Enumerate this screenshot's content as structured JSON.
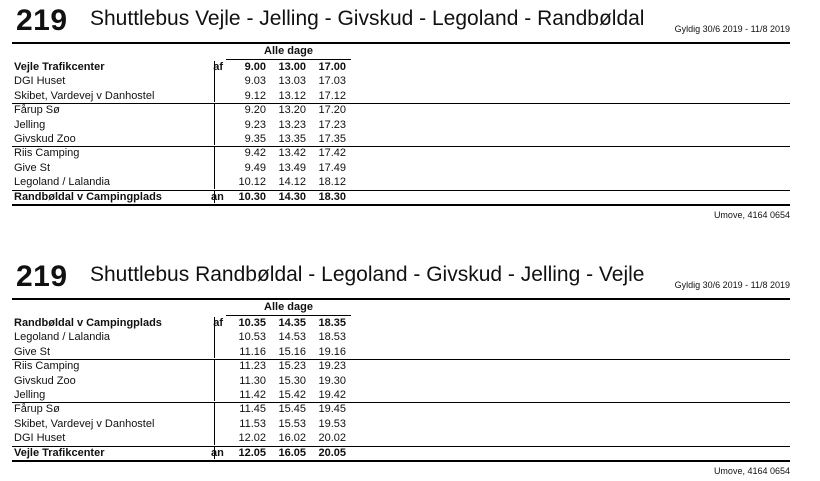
{
  "tables": [
    {
      "route": "219",
      "title": "Shuttlebus Vejle - Jelling - Givskud - Legoland - Randbøldal",
      "valid": "Gyldig 30/6 2019 - 11/8 2019",
      "day_header": "Alle dage",
      "note": "Umove, 4164 0654",
      "rows": [
        {
          "stop": "Vejle Trafikcenter",
          "mark": "af",
          "bold": true,
          "times": [
            "9.00",
            "13.00",
            "17.00"
          ]
        },
        {
          "stop": "DGI Huset",
          "mark": "",
          "bold": false,
          "times": [
            "9.03",
            "13.03",
            "17.03"
          ]
        },
        {
          "stop": "Skibet, Vardevej v Danhostel",
          "mark": "",
          "bold": false,
          "times": [
            "9.12",
            "13.12",
            "17.12"
          ]
        },
        {
          "stop": "Fårup Sø",
          "mark": "",
          "bold": false,
          "times": [
            "9.20",
            "13.20",
            "17.20"
          ]
        },
        {
          "stop": "Jelling",
          "mark": "",
          "bold": false,
          "times": [
            "9.23",
            "13.23",
            "17.23"
          ]
        },
        {
          "stop": "Givskud Zoo",
          "mark": "",
          "bold": false,
          "times": [
            "9.35",
            "13.35",
            "17.35"
          ]
        },
        {
          "stop": "Riis Camping",
          "mark": "",
          "bold": false,
          "times": [
            "9.42",
            "13.42",
            "17.42"
          ]
        },
        {
          "stop": "Give St",
          "mark": "",
          "bold": false,
          "times": [
            "9.49",
            "13.49",
            "17.49"
          ]
        },
        {
          "stop": "Legoland / Lalandia",
          "mark": "",
          "bold": false,
          "times": [
            "10.12",
            "14.12",
            "18.12"
          ]
        },
        {
          "stop": "Randbøldal v Campingplads",
          "mark": "an",
          "bold": true,
          "times": [
            "10.30",
            "14.30",
            "18.30"
          ]
        }
      ]
    },
    {
      "route": "219",
      "title": "Shuttlebus Randbøldal - Legoland - Givskud - Jelling - Vejle",
      "valid": "Gyldig 30/6 2019 - 11/8 2019",
      "day_header": "Alle dage",
      "note": "Umove, 4164 0654",
      "rows": [
        {
          "stop": "Randbøldal v Campingplads",
          "mark": "af",
          "bold": true,
          "times": [
            "10.35",
            "14.35",
            "18.35"
          ]
        },
        {
          "stop": "Legoland / Lalandia",
          "mark": "",
          "bold": false,
          "times": [
            "10.53",
            "14.53",
            "18.53"
          ]
        },
        {
          "stop": "Give St",
          "mark": "",
          "bold": false,
          "times": [
            "11.16",
            "15.16",
            "19.16"
          ]
        },
        {
          "stop": "Riis Camping",
          "mark": "",
          "bold": false,
          "times": [
            "11.23",
            "15.23",
            "19.23"
          ]
        },
        {
          "stop": "Givskud Zoo",
          "mark": "",
          "bold": false,
          "times": [
            "11.30",
            "15.30",
            "19.30"
          ]
        },
        {
          "stop": "Jelling",
          "mark": "",
          "bold": false,
          "times": [
            "11.42",
            "15.42",
            "19.42"
          ]
        },
        {
          "stop": "Fårup Sø",
          "mark": "",
          "bold": false,
          "times": [
            "11.45",
            "15.45",
            "19.45"
          ]
        },
        {
          "stop": "Skibet, Vardevej v Danhostel",
          "mark": "",
          "bold": false,
          "times": [
            "11.53",
            "15.53",
            "19.53"
          ]
        },
        {
          "stop": "DGI Huset",
          "mark": "",
          "bold": false,
          "times": [
            "12.02",
            "16.02",
            "20.02"
          ]
        },
        {
          "stop": "Vejle Trafikcenter",
          "mark": "an",
          "bold": true,
          "times": [
            "12.05",
            "16.05",
            "20.05"
          ]
        }
      ]
    }
  ]
}
